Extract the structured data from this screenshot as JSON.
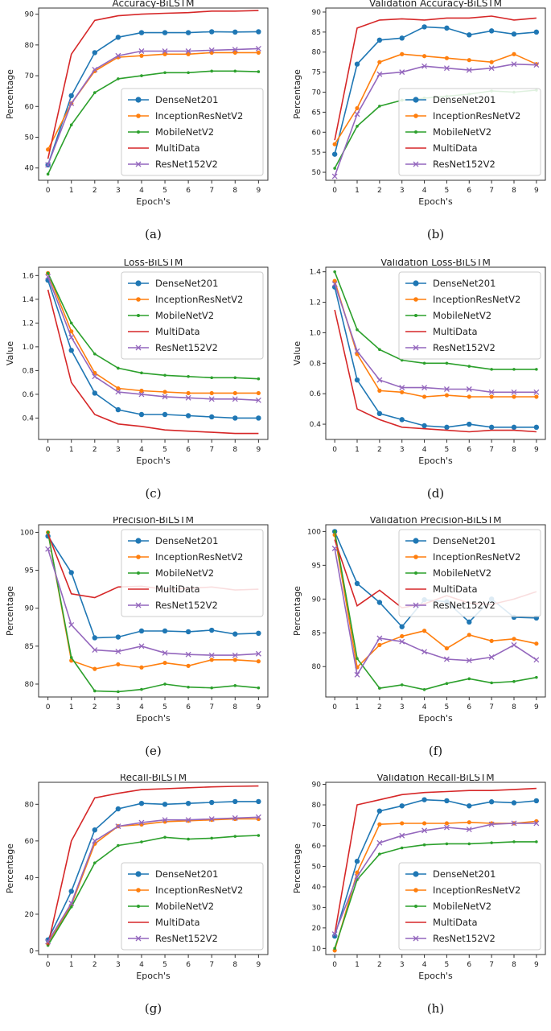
{
  "colors": {
    "DenseNet201": "#1f77b4",
    "InceptionResNetV2": "#ff7f0e",
    "MobileNetV2": "#2ca02c",
    "MultiData": "#d62728",
    "ResNet152V2": "#9467bd"
  },
  "chart_data": [
    {
      "type": "line",
      "id": "a",
      "caption": "(a)",
      "title": "Accuracy-BiLSTM",
      "xlabel": "Epoch's",
      "ylabel": "Percentage",
      "x": [
        0,
        1,
        2,
        3,
        4,
        5,
        6,
        7,
        8,
        9
      ],
      "ylim": [
        36,
        92
      ],
      "yticks": [
        40,
        50,
        60,
        70,
        80,
        90
      ],
      "ytick_labels": [
        "40",
        "50",
        "60",
        "70",
        "80",
        "90"
      ],
      "legend_position": "lower-right",
      "series": [
        {
          "name": "DenseNet201",
          "marker": "circle",
          "values": [
            41,
            63.5,
            77.5,
            82.5,
            84,
            84,
            84,
            84.3,
            84.2,
            84.3
          ]
        },
        {
          "name": "InceptionResNetV2",
          "marker": "circle-small",
          "values": [
            46,
            61,
            71.5,
            76,
            76.5,
            77,
            77,
            77.5,
            77.5,
            77.5
          ]
        },
        {
          "name": "MobileNetV2",
          "marker": "dot",
          "values": [
            38,
            54,
            64.5,
            69,
            70,
            71,
            71,
            71.5,
            71.5,
            71.3
          ]
        },
        {
          "name": "MultiData",
          "marker": "none",
          "values": [
            43,
            77,
            88,
            89.5,
            90,
            90.3,
            90.5,
            91,
            91,
            91.2
          ]
        },
        {
          "name": "ResNet152V2",
          "marker": "x",
          "values": [
            41,
            61,
            72,
            76.5,
            78,
            78,
            78,
            78.3,
            78.5,
            78.8
          ]
        }
      ]
    },
    {
      "type": "line",
      "id": "b",
      "caption": "(b)",
      "title": "Validation Accuracy-BiLSTM",
      "xlabel": "Epoch's",
      "ylabel": "Percentage",
      "x": [
        0,
        1,
        2,
        3,
        4,
        5,
        6,
        7,
        8,
        9
      ],
      "ylim": [
        48,
        91
      ],
      "yticks": [
        50,
        55,
        60,
        65,
        70,
        75,
        80,
        85,
        90
      ],
      "ytick_labels": [
        "50",
        "55",
        "60",
        "65",
        "70",
        "75",
        "80",
        "85",
        "90"
      ],
      "legend_position": "lower-right",
      "series": [
        {
          "name": "DenseNet201",
          "marker": "circle",
          "values": [
            54.5,
            77,
            83,
            83.5,
            86.3,
            86,
            84.3,
            85.3,
            84.5,
            85
          ]
        },
        {
          "name": "InceptionResNetV2",
          "marker": "circle-small",
          "values": [
            57,
            66,
            77.5,
            79.5,
            79,
            78.5,
            78,
            77.5,
            79.5,
            77
          ]
        },
        {
          "name": "MobileNetV2",
          "marker": "dot",
          "values": [
            51,
            61.5,
            66.5,
            68,
            68.5,
            69,
            69.5,
            70.3,
            70,
            70.5
          ]
        },
        {
          "name": "MultiData",
          "marker": "none",
          "values": [
            58,
            86,
            88,
            88.3,
            88,
            88.5,
            88.5,
            89,
            88,
            88.5
          ]
        },
        {
          "name": "ResNet152V2",
          "marker": "x",
          "values": [
            49,
            64.5,
            74.5,
            75,
            76.5,
            76,
            75.5,
            76,
            77,
            76.8
          ]
        }
      ]
    },
    {
      "type": "line",
      "id": "c",
      "caption": "(c)",
      "title": "Loss-BiLSTM",
      "xlabel": "Epoch's",
      "ylabel": "Value",
      "x": [
        0,
        1,
        2,
        3,
        4,
        5,
        6,
        7,
        8,
        9
      ],
      "ylim": [
        0.22,
        1.67
      ],
      "yticks": [
        0.4,
        0.6,
        0.8,
        1.0,
        1.2,
        1.4,
        1.6
      ],
      "ytick_labels": [
        "0.4",
        "0.6",
        "0.8",
        "1.0",
        "1.2",
        "1.4",
        "1.6"
      ],
      "legend_position": "upper-right",
      "series": [
        {
          "name": "DenseNet201",
          "marker": "circle",
          "values": [
            1.56,
            0.97,
            0.61,
            0.47,
            0.43,
            0.43,
            0.42,
            0.41,
            0.4,
            0.4
          ]
        },
        {
          "name": "InceptionResNetV2",
          "marker": "circle-small",
          "values": [
            1.62,
            1.13,
            0.78,
            0.65,
            0.63,
            0.62,
            0.61,
            0.61,
            0.61,
            0.61
          ]
        },
        {
          "name": "MobileNetV2",
          "marker": "dot",
          "values": [
            1.62,
            1.2,
            0.94,
            0.82,
            0.78,
            0.76,
            0.75,
            0.74,
            0.74,
            0.73
          ]
        },
        {
          "name": "MultiData",
          "marker": "none",
          "values": [
            1.48,
            0.7,
            0.43,
            0.35,
            0.33,
            0.3,
            0.29,
            0.28,
            0.27,
            0.27
          ]
        },
        {
          "name": "ResNet152V2",
          "marker": "x",
          "values": [
            1.59,
            1.08,
            0.75,
            0.62,
            0.6,
            0.58,
            0.57,
            0.56,
            0.56,
            0.55
          ]
        }
      ]
    },
    {
      "type": "line",
      "id": "d",
      "caption": "(d)",
      "title": "Validation Loss-BiLSTM",
      "xlabel": "Epoch's",
      "ylabel": "Value",
      "x": [
        0,
        1,
        2,
        3,
        4,
        5,
        6,
        7,
        8,
        9
      ],
      "ylim": [
        0.3,
        1.43
      ],
      "yticks": [
        0.4,
        0.6,
        0.8,
        1.0,
        1.2,
        1.4
      ],
      "ytick_labels": [
        "0.4",
        "0.6",
        "0.8",
        "1.0",
        "1.2",
        "1.4"
      ],
      "legend_position": "upper-right",
      "series": [
        {
          "name": "DenseNet201",
          "marker": "circle",
          "values": [
            1.3,
            0.69,
            0.47,
            0.43,
            0.39,
            0.38,
            0.4,
            0.38,
            0.38,
            0.38
          ]
        },
        {
          "name": "InceptionResNetV2",
          "marker": "circle-small",
          "values": [
            1.34,
            0.86,
            0.62,
            0.61,
            0.58,
            0.59,
            0.58,
            0.58,
            0.58,
            0.58
          ]
        },
        {
          "name": "MobileNetV2",
          "marker": "dot",
          "values": [
            1.4,
            1.02,
            0.89,
            0.82,
            0.8,
            0.8,
            0.78,
            0.76,
            0.76,
            0.76
          ]
        },
        {
          "name": "MultiData",
          "marker": "none",
          "values": [
            1.15,
            0.5,
            0.43,
            0.38,
            0.37,
            0.36,
            0.35,
            0.36,
            0.36,
            0.35
          ]
        },
        {
          "name": "ResNet152V2",
          "marker": "x",
          "values": [
            1.32,
            0.88,
            0.69,
            0.64,
            0.64,
            0.63,
            0.63,
            0.61,
            0.61,
            0.61
          ]
        }
      ]
    },
    {
      "type": "line",
      "id": "e",
      "caption": "(e)",
      "title": "Precision-BiLSTM",
      "xlabel": "Epoch's",
      "ylabel": "Percentage",
      "x": [
        0,
        1,
        2,
        3,
        4,
        5,
        6,
        7,
        8,
        9
      ],
      "ylim": [
        78.3,
        101
      ],
      "yticks": [
        80,
        85,
        90,
        95,
        100
      ],
      "ytick_labels": [
        "80",
        "85",
        "90",
        "95",
        "100"
      ],
      "legend_position": "upper-right",
      "series": [
        {
          "name": "DenseNet201",
          "marker": "circle",
          "values": [
            99.5,
            94.7,
            86.1,
            86.2,
            87.0,
            87.0,
            86.9,
            87.1,
            86.6,
            86.7
          ]
        },
        {
          "name": "InceptionResNetV2",
          "marker": "circle-small",
          "values": [
            100,
            83.1,
            82.0,
            82.6,
            82.2,
            82.8,
            82.4,
            83.2,
            83.2,
            83.0
          ]
        },
        {
          "name": "MobileNetV2",
          "marker": "dot",
          "values": [
            100,
            83.5,
            79.1,
            79.0,
            79.3,
            80.0,
            79.6,
            79.5,
            79.8,
            79.5
          ]
        },
        {
          "name": "MultiData",
          "marker": "none",
          "values": [
            99.8,
            91.9,
            91.4,
            92.8,
            92.9,
            92.5,
            92.6,
            92.8,
            92.4,
            92.5
          ]
        },
        {
          "name": "ResNet152V2",
          "marker": "x",
          "values": [
            97.8,
            87.8,
            84.5,
            84.3,
            85.0,
            84.1,
            83.9,
            83.8,
            83.8,
            84.0
          ]
        }
      ]
    },
    {
      "type": "line",
      "id": "f",
      "caption": "(f)",
      "title": "Validation Precision-BiLSTM",
      "xlabel": "Epoch's",
      "ylabel": "Percentage",
      "x": [
        0,
        1,
        2,
        3,
        4,
        5,
        6,
        7,
        8,
        9
      ],
      "ylim": [
        75.5,
        101
      ],
      "yticks": [
        80,
        85,
        90,
        95,
        100
      ],
      "ytick_labels": [
        "80",
        "85",
        "90",
        "95",
        "100"
      ],
      "legend_position": "upper-right",
      "series": [
        {
          "name": "DenseNet201",
          "marker": "circle",
          "values": [
            100,
            92.3,
            89.5,
            85.9,
            89.9,
            89.6,
            86.6,
            90.0,
            87.3,
            87.2
          ]
        },
        {
          "name": "InceptionResNetV2",
          "marker": "circle-small",
          "values": [
            99.5,
            79.9,
            83.2,
            84.5,
            85.3,
            82.7,
            84.7,
            83.8,
            84.1,
            83.4
          ]
        },
        {
          "name": "MobileNetV2",
          "marker": "dot",
          "values": [
            100,
            81.2,
            76.8,
            77.3,
            76.6,
            77.5,
            78.2,
            77.6,
            77.8,
            78.4
          ]
        },
        {
          "name": "MultiData",
          "marker": "none",
          "values": [
            98.8,
            89.0,
            91.3,
            88.7,
            89.3,
            90.5,
            89.4,
            89.2,
            90.0,
            91.1
          ]
        },
        {
          "name": "ResNet152V2",
          "marker": "x",
          "values": [
            97.5,
            78.8,
            84.2,
            83.7,
            82.2,
            81.1,
            80.9,
            81.4,
            83.2,
            81.0
          ]
        }
      ]
    },
    {
      "type": "line",
      "id": "g",
      "caption": "(g)",
      "title": "Recall-BiLSTM",
      "xlabel": "Epoch's",
      "ylabel": "Percentage",
      "x": [
        0,
        1,
        2,
        3,
        4,
        5,
        6,
        7,
        8,
        9
      ],
      "ylim": [
        -2,
        92
      ],
      "yticks": [
        0,
        20,
        40,
        60,
        80
      ],
      "ytick_labels": [
        "0",
        "20",
        "40",
        "60",
        "80"
      ],
      "legend_position": "lower-right",
      "series": [
        {
          "name": "DenseNet201",
          "marker": "circle",
          "values": [
            6,
            32.5,
            66,
            77.5,
            80.5,
            80,
            80.5,
            81,
            81.5,
            81.5
          ]
        },
        {
          "name": "InceptionResNetV2",
          "marker": "circle-small",
          "values": [
            4,
            25,
            58.5,
            68,
            69,
            70.5,
            71,
            71.5,
            72,
            72
          ]
        },
        {
          "name": "MobileNetV2",
          "marker": "dot",
          "values": [
            3,
            24,
            48,
            57.5,
            59.5,
            62,
            61,
            61.5,
            62.5,
            63
          ]
        },
        {
          "name": "MultiData",
          "marker": "none",
          "values": [
            3,
            60,
            83.5,
            86,
            88,
            88.5,
            89,
            89.5,
            89.8,
            90
          ]
        },
        {
          "name": "ResNet152V2",
          "marker": "x",
          "values": [
            5,
            26,
            60,
            68,
            70,
            71.5,
            71.5,
            72,
            72.5,
            73
          ]
        }
      ]
    },
    {
      "type": "line",
      "id": "h",
      "caption": "(h)",
      "title": "Validation Recall-BiLSTM",
      "xlabel": "Epoch's",
      "ylabel": "Percentage",
      "x": [
        0,
        1,
        2,
        3,
        4,
        5,
        6,
        7,
        8,
        9
      ],
      "ylim": [
        7,
        91
      ],
      "yticks": [
        10,
        20,
        30,
        40,
        50,
        60,
        70,
        80,
        90
      ],
      "ytick_labels": [
        "10",
        "20",
        "30",
        "40",
        "50",
        "60",
        "70",
        "80",
        "90"
      ],
      "legend_position": "lower-right",
      "series": [
        {
          "name": "DenseNet201",
          "marker": "circle",
          "values": [
            16,
            52.5,
            77,
            79.5,
            82.5,
            82,
            79.5,
            81.5,
            81,
            82
          ]
        },
        {
          "name": "InceptionResNetV2",
          "marker": "circle-small",
          "values": [
            9,
            47,
            70.5,
            71,
            71,
            71,
            71.5,
            71,
            71,
            72
          ]
        },
        {
          "name": "MobileNetV2",
          "marker": "dot",
          "values": [
            10,
            43.5,
            56,
            59,
            60.5,
            61,
            61,
            61.5,
            62,
            62
          ]
        },
        {
          "name": "MultiData",
          "marker": "none",
          "values": [
            17,
            80,
            82.5,
            85,
            86,
            86.5,
            87,
            87,
            87.5,
            88
          ]
        },
        {
          "name": "ResNet152V2",
          "marker": "x",
          "values": [
            17,
            45,
            61.5,
            65,
            67.5,
            69,
            68,
            70.5,
            71,
            71
          ]
        }
      ]
    }
  ]
}
